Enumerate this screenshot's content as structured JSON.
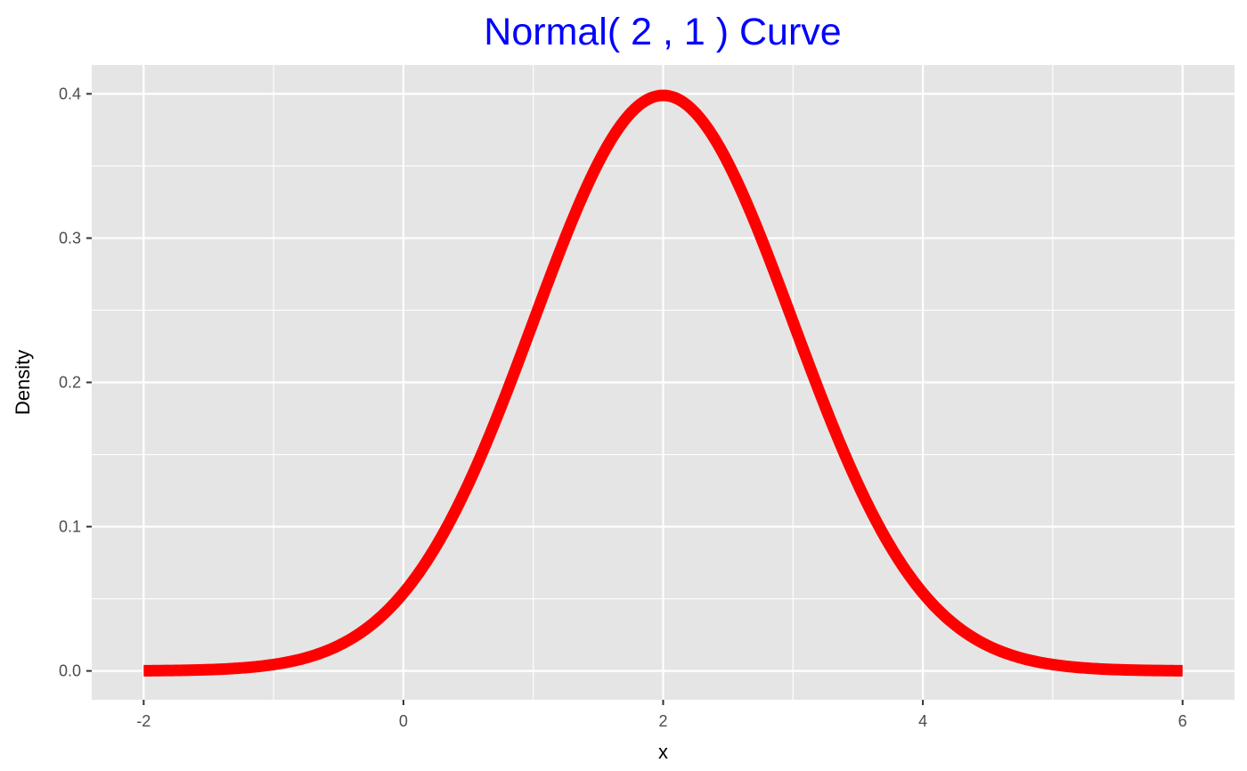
{
  "chart_data": {
    "type": "line",
    "title": "Normal( 2 , 1 ) Curve",
    "xlabel": "x",
    "ylabel": "Density",
    "distribution": {
      "family": "normal",
      "mean": 2,
      "sd": 1
    },
    "xlim": [
      -2.4,
      6.4
    ],
    "ylim": [
      -0.02,
      0.42
    ],
    "x_ticks": [
      -2,
      0,
      2,
      4,
      6
    ],
    "x_tick_labels": [
      "-2",
      "0",
      "2",
      "4",
      "6"
    ],
    "y_ticks": [
      0.0,
      0.1,
      0.2,
      0.3,
      0.4
    ],
    "y_tick_labels": [
      "0.0",
      "0.1",
      "0.2",
      "0.3",
      "0.4"
    ],
    "grid": true,
    "series": [
      {
        "color": "#ff0000",
        "x": [
          -2.0,
          -1.5,
          -1.0,
          -0.5,
          0.0,
          0.25,
          0.5,
          0.75,
          1.0,
          1.25,
          1.5,
          1.75,
          2.0,
          2.25,
          2.5,
          2.75,
          3.0,
          3.25,
          3.5,
          3.75,
          4.0,
          4.5,
          5.0,
          5.5,
          6.0
        ],
        "y": [
          0.0001,
          0.0009,
          0.0044,
          0.0175,
          0.054,
          0.0863,
          0.1295,
          0.1826,
          0.242,
          0.3011,
          0.3521,
          0.3867,
          0.3989,
          0.3867,
          0.3521,
          0.3011,
          0.242,
          0.1826,
          0.1295,
          0.0863,
          0.054,
          0.0175,
          0.0044,
          0.0009,
          0.0001
        ]
      }
    ]
  },
  "colors": {
    "title": "#0000ff",
    "panel_background": "#e5e5e5",
    "grid_line": "#ffffff",
    "curve": "#ff0000"
  }
}
